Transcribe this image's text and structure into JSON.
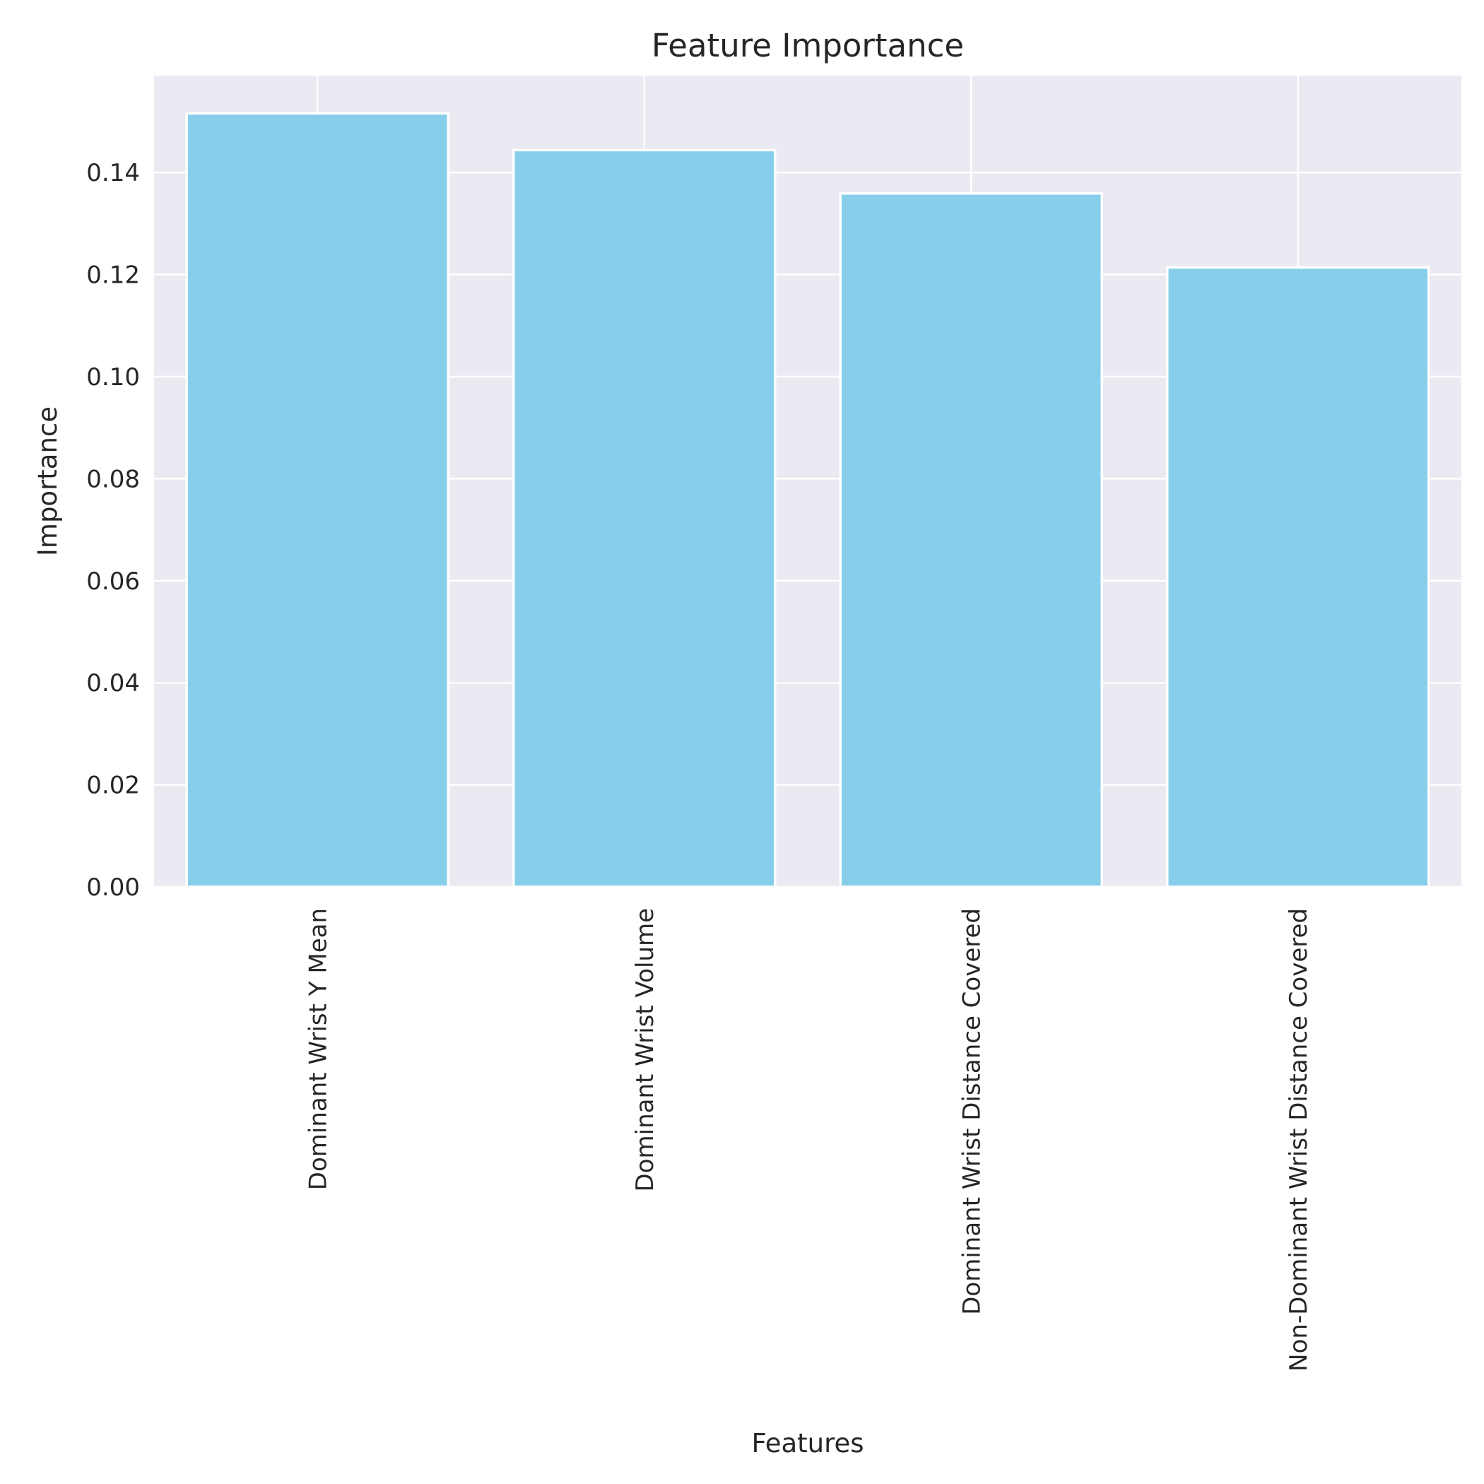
{
  "chart_data": {
    "type": "bar",
    "title": "Feature Importance",
    "xlabel": "Features",
    "ylabel": "Importance",
    "categories": [
      "Dominant Wrist Y Mean",
      "Dominant Wrist Volume",
      "Dominant Wrist Distance Covered",
      "Non-Dominant Wrist Distance Covered"
    ],
    "values": [
      0.1516,
      0.1444,
      0.1359,
      0.1214
    ],
    "ylim": [
      0,
      0.159
    ],
    "yticks": [
      0.0,
      0.02,
      0.04,
      0.06,
      0.08,
      0.1,
      0.12,
      0.14
    ],
    "ytick_labels": [
      "0.00",
      "0.02",
      "0.04",
      "0.06",
      "0.08",
      "0.10",
      "0.12",
      "0.14"
    ],
    "grid": true,
    "bar_color": "#87ceeb",
    "background_color": "#eaeaf2"
  }
}
